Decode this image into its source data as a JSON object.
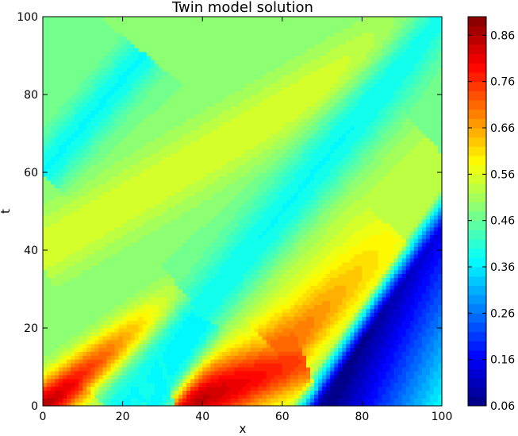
{
  "chart_data": {
    "type": "heatmap",
    "subtype": "filled-contour",
    "title": "Twin model solution",
    "xlabel": "x",
    "ylabel": "t",
    "xlim": [
      0,
      100
    ],
    "ylim": [
      0,
      100
    ],
    "x_ticks": [
      0,
      20,
      40,
      60,
      80,
      100
    ],
    "y_ticks": [
      0,
      20,
      40,
      60,
      80,
      100
    ],
    "colorbar": {
      "colormap": "jet",
      "range": [
        0.06,
        0.9
      ],
      "levels": 42,
      "tick_values": [
        0.06,
        0.16,
        0.26,
        0.36,
        0.46,
        0.56,
        0.66,
        0.76,
        0.86
      ],
      "tick_labels": [
        "0.06",
        "0.16",
        "0.26",
        "0.36",
        "0.46",
        "0.56",
        "0.66",
        "0.76",
        "0.86"
      ]
    },
    "features": [
      {
        "kind": "background",
        "value": 0.48
      },
      {
        "kind": "ridge",
        "from": [
          0,
          0
        ],
        "to": [
          35,
          28
        ],
        "width": 4.0,
        "peak": 0.86,
        "tail": 0.58
      },
      {
        "kind": "ridge",
        "from": [
          0,
          40
        ],
        "to": [
          100,
          100
        ],
        "width": 6.0,
        "peak": 0.56,
        "tail": 0.56
      },
      {
        "kind": "ridge",
        "from": [
          30,
          0
        ],
        "to": [
          100,
          62
        ],
        "width": 9.0,
        "peak": 0.54,
        "tail": 0.54
      },
      {
        "kind": "ridge",
        "from": [
          34,
          0
        ],
        "to": [
          65,
          12
        ],
        "width": 6.0,
        "peak": 0.88,
        "tail": 0.74
      },
      {
        "kind": "ridge",
        "from": [
          60,
          14
        ],
        "to": [
          88,
          44
        ],
        "width": 5.0,
        "peak": 0.72,
        "tail": 0.58
      },
      {
        "kind": "trough",
        "from": [
          0,
          60
        ],
        "to": [
          25,
          90
        ],
        "width": 4.0,
        "depth": 0.36
      },
      {
        "kind": "trough",
        "from": [
          20,
          0
        ],
        "to": [
          100,
          100
        ],
        "width": 5.0,
        "depth": 0.36
      },
      {
        "kind": "trough",
        "from": [
          28,
          0
        ],
        "to": [
          40,
          22
        ],
        "width": 3.0,
        "depth": 0.36
      },
      {
        "kind": "blue-wedge",
        "front": [
          [
            62,
            0
          ],
          [
            100,
            56
          ]
        ],
        "value": 0.06,
        "recovery": 0.36
      }
    ]
  }
}
